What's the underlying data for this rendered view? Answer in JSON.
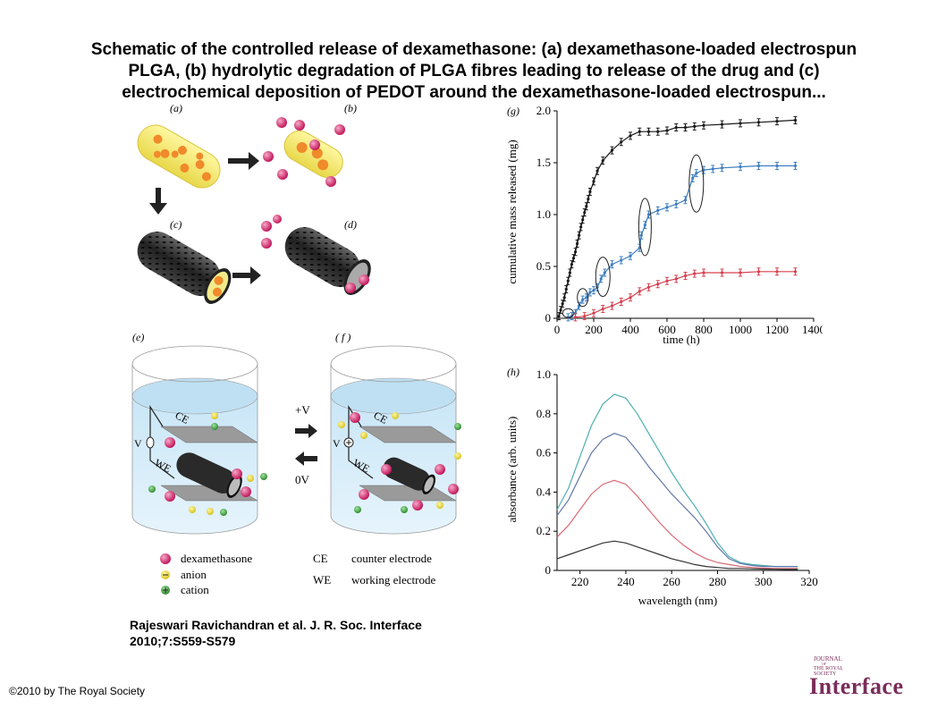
{
  "title": {
    "line1": "Schematic of the controlled release of dexamethasone: (a) dexamethasone-loaded electrospun",
    "line2": "PLGA, (b) hydrolytic degradation of PLGA fibres leading to release of the drug and (c)",
    "line3": "electrochemical deposition of PEDOT around the dexamethasone-loaded electrospun..."
  },
  "panels": {
    "a": "(a)",
    "b": "(b)",
    "c": "(c)",
    "d": "(d)",
    "e": "(e)",
    "f": "( f )",
    "g": "(g)",
    "h": "(h)"
  },
  "cells": {
    "ce": "CE",
    "we": "WE",
    "v": "V",
    "plus_v": "+V",
    "zero_v": "0V"
  },
  "legend": {
    "dex": "dexamethasone",
    "anion": "anion",
    "cation": "cation",
    "ce_key": "CE",
    "ce_desc": "counter electrode",
    "we_key": "WE",
    "we_desc": "working electrode"
  },
  "colors": {
    "drug": "#d6246e",
    "black_series": "#1a1a1a",
    "blue_series": "#3f7fc0",
    "red_series": "#d6404f",
    "teal": "#4fb0b0",
    "slate": "#6377a8",
    "pink": "#d96a75",
    "dark": "#333333"
  },
  "chart_data": [
    {
      "type": "line",
      "xlabel": "time (h)",
      "ylabel": "cumulative mass released (mg)",
      "xlim": [
        0,
        1400
      ],
      "ylim": [
        0,
        2.0
      ],
      "xticks": [
        0,
        200,
        400,
        600,
        800,
        1000,
        1200,
        1400
      ],
      "yticks": [
        0,
        0.5,
        1.0,
        1.5,
        2.0
      ],
      "series": [
        {
          "color": "#1a1a1a",
          "x": [
            10,
            20,
            30,
            40,
            50,
            60,
            70,
            80,
            90,
            100,
            110,
            120,
            130,
            140,
            150,
            160,
            170,
            180,
            200,
            220,
            250,
            300,
            350,
            400,
            450,
            500,
            550,
            600,
            650,
            700,
            750,
            800,
            900,
            1000,
            1100,
            1200,
            1300
          ],
          "y": [
            0.02,
            0.08,
            0.14,
            0.2,
            0.28,
            0.36,
            0.44,
            0.52,
            0.58,
            0.64,
            0.72,
            0.8,
            0.88,
            0.95,
            1.02,
            1.08,
            1.15,
            1.22,
            1.32,
            1.42,
            1.52,
            1.62,
            1.7,
            1.76,
            1.8,
            1.8,
            1.8,
            1.81,
            1.84,
            1.84,
            1.85,
            1.86,
            1.87,
            1.88,
            1.89,
            1.9,
            1.91
          ]
        },
        {
          "color": "#3f7fc0",
          "x": [
            60,
            80,
            100,
            120,
            140,
            160,
            180,
            200,
            220,
            240,
            260,
            300,
            350,
            400,
            450,
            460,
            480,
            500,
            550,
            600,
            650,
            700,
            740,
            760,
            800,
            850,
            900,
            1000,
            1100,
            1200,
            1300
          ],
          "y": [
            0.01,
            0.02,
            0.05,
            0.12,
            0.18,
            0.2,
            0.25,
            0.27,
            0.3,
            0.38,
            0.44,
            0.52,
            0.56,
            0.6,
            0.68,
            0.8,
            0.9,
            1.0,
            1.04,
            1.07,
            1.1,
            1.14,
            1.35,
            1.4,
            1.43,
            1.44,
            1.45,
            1.46,
            1.47,
            1.47,
            1.47
          ]
        },
        {
          "color": "#d6404f",
          "x": [
            100,
            150,
            200,
            250,
            300,
            350,
            400,
            450,
            500,
            550,
            600,
            650,
            700,
            750,
            800,
            900,
            1000,
            1100,
            1200,
            1300
          ],
          "y": [
            0.01,
            0.02,
            0.05,
            0.09,
            0.12,
            0.16,
            0.2,
            0.26,
            0.3,
            0.33,
            0.36,
            0.38,
            0.41,
            0.43,
            0.44,
            0.44,
            0.44,
            0.45,
            0.45,
            0.45
          ]
        }
      ],
      "ellipses": [
        {
          "x": 60,
          "y": 0.05
        },
        {
          "x": 140,
          "y": 0.2
        },
        {
          "x": 250,
          "y": 0.4
        },
        {
          "x": 480,
          "y": 0.88
        },
        {
          "x": 760,
          "y": 1.3
        }
      ]
    },
    {
      "type": "line",
      "xlabel": "wavelength (nm)",
      "ylabel": "absorbance (arb. units)",
      "xlim": [
        210,
        320
      ],
      "ylim": [
        0,
        1.0
      ],
      "xticks": [
        220,
        240,
        260,
        280,
        300,
        320
      ],
      "yticks": [
        0,
        0.2,
        0.4,
        0.6,
        0.8,
        1.0
      ],
      "series": [
        {
          "color": "#4fb0b0",
          "x": [
            210,
            215,
            220,
            225,
            230,
            235,
            240,
            245,
            250,
            255,
            260,
            265,
            270,
            275,
            280,
            285,
            290,
            295,
            300,
            305,
            310,
            315
          ],
          "y": [
            0.31,
            0.42,
            0.58,
            0.74,
            0.85,
            0.9,
            0.88,
            0.8,
            0.7,
            0.6,
            0.5,
            0.41,
            0.33,
            0.24,
            0.14,
            0.07,
            0.04,
            0.03,
            0.025,
            0.02,
            0.02,
            0.02
          ]
        },
        {
          "color": "#6377a8",
          "x": [
            210,
            215,
            220,
            225,
            230,
            235,
            240,
            245,
            250,
            255,
            260,
            265,
            270,
            275,
            280,
            285,
            290,
            295,
            300,
            305,
            310,
            315
          ],
          "y": [
            0.28,
            0.36,
            0.48,
            0.6,
            0.67,
            0.7,
            0.68,
            0.61,
            0.53,
            0.46,
            0.39,
            0.33,
            0.27,
            0.2,
            0.12,
            0.06,
            0.035,
            0.025,
            0.02,
            0.02,
            0.02,
            0.02
          ]
        },
        {
          "color": "#d96a75",
          "x": [
            210,
            215,
            220,
            225,
            230,
            235,
            240,
            245,
            250,
            255,
            260,
            265,
            270,
            275,
            280,
            285,
            290,
            295,
            300,
            305,
            310,
            315
          ],
          "y": [
            0.17,
            0.23,
            0.31,
            0.39,
            0.44,
            0.46,
            0.44,
            0.38,
            0.31,
            0.24,
            0.18,
            0.13,
            0.09,
            0.06,
            0.04,
            0.03,
            0.02,
            0.015,
            0.012,
            0.01,
            0.01,
            0.01
          ]
        },
        {
          "color": "#333333",
          "x": [
            210,
            215,
            220,
            225,
            230,
            235,
            240,
            245,
            250,
            255,
            260,
            265,
            270,
            275,
            280,
            285,
            290,
            295,
            300,
            305,
            310,
            315
          ],
          "y": [
            0.06,
            0.08,
            0.1,
            0.12,
            0.14,
            0.15,
            0.14,
            0.12,
            0.1,
            0.08,
            0.06,
            0.045,
            0.03,
            0.02,
            0.015,
            0.01,
            0.01,
            0.008,
            0.007,
            0.006,
            0.005,
            0.005
          ]
        }
      ]
    }
  ],
  "citation": {
    "line1": "Rajeswari Ravichandran et al. J. R. Soc. Interface",
    "line2": "2010;7:S559-S579"
  },
  "copyright": "©2010 by The Royal Society",
  "logo": {
    "small1": "JOURNAL",
    "small2": "OF",
    "small3": "THE ROYAL",
    "small4": "SOCIETY",
    "big": "Interface"
  }
}
